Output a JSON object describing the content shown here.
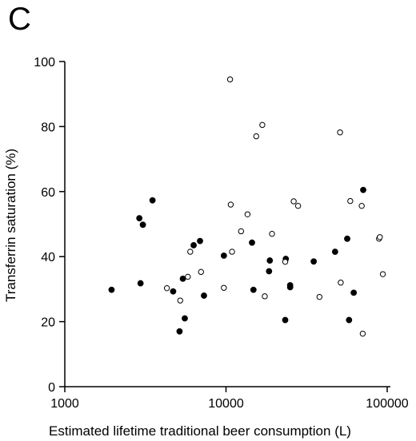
{
  "chart_data": {
    "type": "scatter",
    "panel_label": "C",
    "xlabel": "Estimated lifetime traditional beer consumption (L)",
    "ylabel": "Transferrin saturation (%)",
    "x_scale": "log",
    "xlim": [
      1000,
      100000
    ],
    "ylim": [
      0,
      100
    ],
    "x_ticks": [
      1000,
      10000,
      100000
    ],
    "x_tick_labels": [
      "1000",
      "10000",
      "100000"
    ],
    "y_ticks": [
      0,
      20,
      40,
      60,
      80,
      100
    ],
    "y_tick_labels": [
      "0",
      "20",
      "40",
      "60",
      "80",
      "100"
    ],
    "grid": false,
    "series": [
      {
        "marker": "filled-circle",
        "points": [
          {
            "x": 1950,
            "y": 29.8
          },
          {
            "x": 2900,
            "y": 51.8
          },
          {
            "x": 2950,
            "y": 31.8
          },
          {
            "x": 3050,
            "y": 49.8
          },
          {
            "x": 3500,
            "y": 57.3
          },
          {
            "x": 4700,
            "y": 29.3
          },
          {
            "x": 5150,
            "y": 17.0
          },
          {
            "x": 5400,
            "y": 33.2
          },
          {
            "x": 5550,
            "y": 21.0
          },
          {
            "x": 6300,
            "y": 43.5
          },
          {
            "x": 6900,
            "y": 44.8
          },
          {
            "x": 7300,
            "y": 28.0
          },
          {
            "x": 9700,
            "y": 40.3
          },
          {
            "x": 14500,
            "y": 44.3
          },
          {
            "x": 14800,
            "y": 29.8
          },
          {
            "x": 18500,
            "y": 35.5
          },
          {
            "x": 18700,
            "y": 38.8
          },
          {
            "x": 23500,
            "y": 39.3
          },
          {
            "x": 23300,
            "y": 20.5
          },
          {
            "x": 25000,
            "y": 31.2
          },
          {
            "x": 25000,
            "y": 30.6
          },
          {
            "x": 35000,
            "y": 38.5
          },
          {
            "x": 47500,
            "y": 41.5
          },
          {
            "x": 56500,
            "y": 45.5
          },
          {
            "x": 58000,
            "y": 20.5
          },
          {
            "x": 62000,
            "y": 28.9
          },
          {
            "x": 71000,
            "y": 60.5
          }
        ]
      },
      {
        "marker": "open-circle",
        "points": [
          {
            "x": 4300,
            "y": 30.3
          },
          {
            "x": 5200,
            "y": 26.5
          },
          {
            "x": 5800,
            "y": 33.8
          },
          {
            "x": 6000,
            "y": 41.5
          },
          {
            "x": 7000,
            "y": 35.3
          },
          {
            "x": 9700,
            "y": 30.4
          },
          {
            "x": 10600,
            "y": 94.5
          },
          {
            "x": 10700,
            "y": 56.0
          },
          {
            "x": 10900,
            "y": 41.5
          },
          {
            "x": 12400,
            "y": 47.8
          },
          {
            "x": 13600,
            "y": 53.0
          },
          {
            "x": 15400,
            "y": 77.0
          },
          {
            "x": 16800,
            "y": 80.5
          },
          {
            "x": 17400,
            "y": 27.8
          },
          {
            "x": 19300,
            "y": 47.0
          },
          {
            "x": 23300,
            "y": 38.4
          },
          {
            "x": 26300,
            "y": 57.0
          },
          {
            "x": 28000,
            "y": 55.6
          },
          {
            "x": 38000,
            "y": 27.6
          },
          {
            "x": 51000,
            "y": 78.2
          },
          {
            "x": 51500,
            "y": 32.0
          },
          {
            "x": 59000,
            "y": 57.1
          },
          {
            "x": 69500,
            "y": 55.6
          },
          {
            "x": 70500,
            "y": 16.3
          },
          {
            "x": 89000,
            "y": 45.5
          },
          {
            "x": 90000,
            "y": 46.0
          },
          {
            "x": 94000,
            "y": 34.6
          }
        ]
      }
    ]
  }
}
